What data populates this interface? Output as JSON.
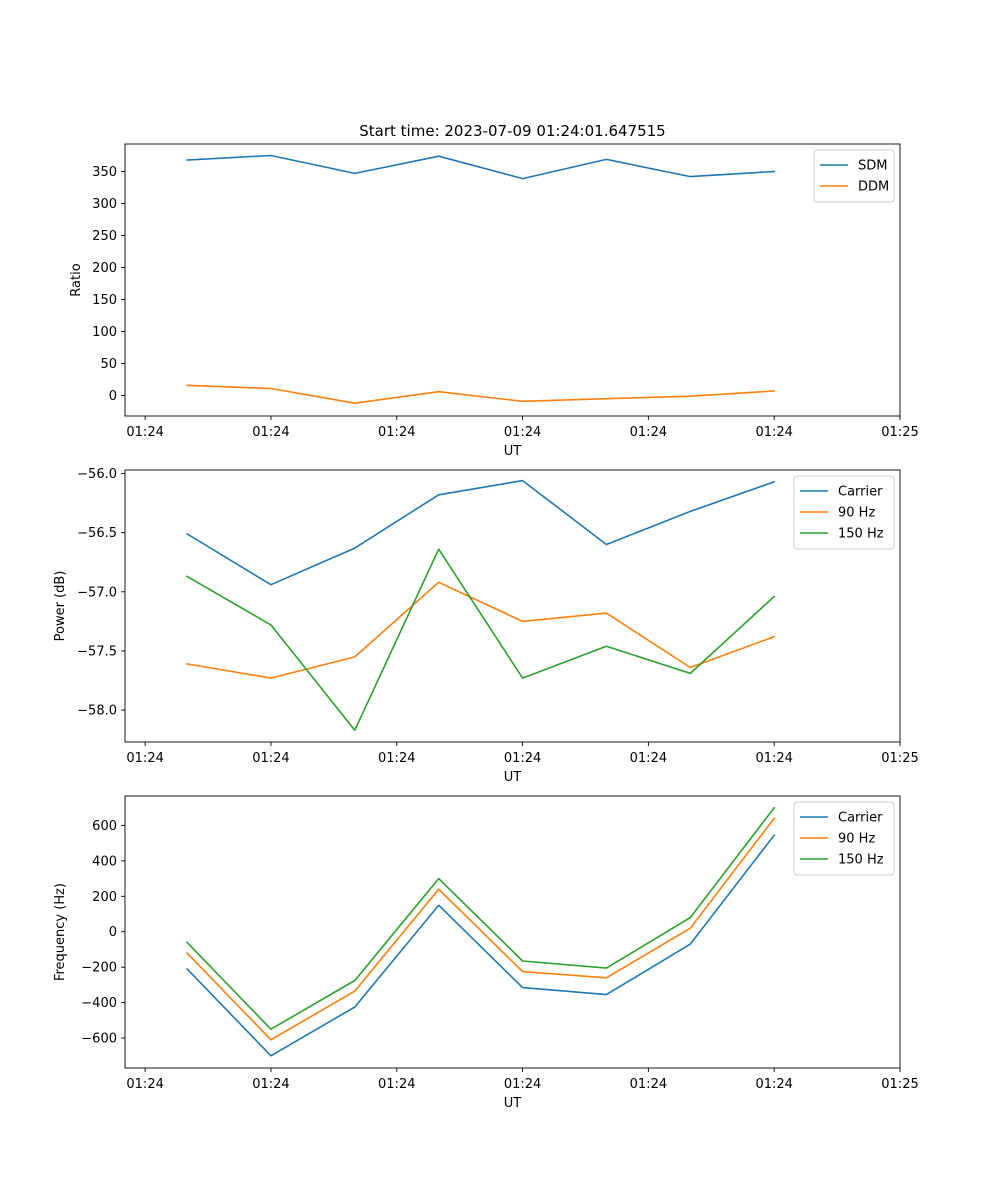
{
  "chart_data": [
    {
      "type": "line",
      "title": "Start time: 2023-07-09 01:24:01.647515",
      "xlabel": "UT",
      "ylabel": "Ratio",
      "xlim": [
        -0.24,
        9.0
      ],
      "ylim": [
        -32,
        393
      ],
      "x": [
        0.5,
        1.5,
        2.5,
        3.5,
        4.5,
        5.5,
        6.5,
        7.5
      ],
      "xticks": [
        0,
        1.5,
        3,
        4.5,
        6,
        7.5,
        9
      ],
      "xtick_labels": [
        "01:24",
        "01:24",
        "01:24",
        "01:24",
        "01:24",
        "01:24",
        "01:25"
      ],
      "yticks": [
        0,
        50,
        100,
        150,
        200,
        250,
        300,
        350
      ],
      "ytick_labels": [
        "0",
        "50",
        "100",
        "150",
        "200",
        "250",
        "300",
        "350"
      ],
      "legend_position": "top-right",
      "series": [
        {
          "name": "SDM",
          "color": "#1f77b4",
          "values": [
            368,
            375,
            347,
            374,
            339,
            369,
            342,
            350
          ]
        },
        {
          "name": "DDM",
          "color": "#ff7f0e",
          "values": [
            16,
            11,
            -12,
            6,
            -9,
            -5,
            -1,
            7
          ]
        }
      ]
    },
    {
      "type": "line",
      "title": "",
      "xlabel": "UT",
      "ylabel": "Power (dB)",
      "xlim": [
        -0.24,
        9.0
      ],
      "ylim": [
        -58.27,
        -55.97
      ],
      "x": [
        0.5,
        1.5,
        2.5,
        3.5,
        4.5,
        5.5,
        6.5,
        7.5
      ],
      "xticks": [
        0,
        1.5,
        3,
        4.5,
        6,
        7.5,
        9
      ],
      "xtick_labels": [
        "01:24",
        "01:24",
        "01:24",
        "01:24",
        "01:24",
        "01:24",
        "01:25"
      ],
      "yticks": [
        -58.0,
        -57.5,
        -57.0,
        -56.5,
        -56.0
      ],
      "ytick_labels": [
        "−58.0",
        "−57.5",
        "−57.0",
        "−56.5",
        "−56.0"
      ],
      "legend_position": "top-right",
      "series": [
        {
          "name": "Carrier",
          "color": "#1f77b4",
          "values": [
            -56.51,
            -56.94,
            -56.63,
            -56.18,
            -56.06,
            -56.6,
            -56.32,
            -56.07
          ]
        },
        {
          "name": "90 Hz",
          "color": "#ff7f0e",
          "values": [
            -57.61,
            -57.73,
            -57.55,
            -56.92,
            -57.25,
            -57.18,
            -57.64,
            -57.38
          ]
        },
        {
          "name": "150 Hz",
          "color": "#2ca02c",
          "values": [
            -56.87,
            -57.28,
            -58.17,
            -56.64,
            -57.73,
            -57.46,
            -57.69,
            -57.04
          ]
        }
      ]
    },
    {
      "type": "line",
      "title": "",
      "xlabel": "UT",
      "ylabel": "Frequency (Hz)",
      "xlim": [
        -0.24,
        9.0
      ],
      "ylim": [
        -769,
        766
      ],
      "x": [
        0.5,
        1.5,
        2.5,
        3.5,
        4.5,
        5.5,
        6.5,
        7.5
      ],
      "xticks": [
        0,
        1.5,
        3,
        4.5,
        6,
        7.5,
        9
      ],
      "xtick_labels": [
        "01:24",
        "01:24",
        "01:24",
        "01:24",
        "01:24",
        "01:24",
        "01:25"
      ],
      "yticks": [
        -600,
        -400,
        -200,
        0,
        200,
        400,
        600
      ],
      "ytick_labels": [
        "−600",
        "−400",
        "−200",
        "0",
        "200",
        "400",
        "600"
      ],
      "legend_position": "top-right",
      "series": [
        {
          "name": "Carrier",
          "color": "#1f77b4",
          "values": [
            -210,
            -700,
            -425,
            150,
            -315,
            -355,
            -70,
            545
          ]
        },
        {
          "name": "90 Hz",
          "color": "#ff7f0e",
          "values": [
            -120,
            -610,
            -335,
            240,
            -225,
            -260,
            20,
            640
          ]
        },
        {
          "name": "150 Hz",
          "color": "#2ca02c",
          "values": [
            -60,
            -550,
            -275,
            300,
            -165,
            -205,
            80,
            700
          ]
        }
      ]
    }
  ]
}
